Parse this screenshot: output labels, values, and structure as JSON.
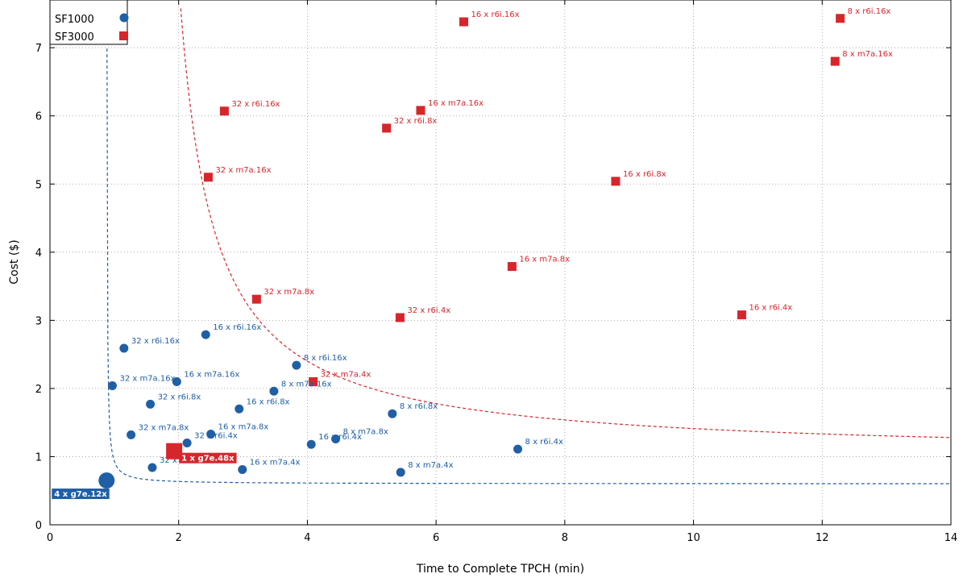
{
  "chart_data": {
    "type": "scatter",
    "xlabel": "Time to Complete TPCH (min)",
    "ylabel": "Cost ($)",
    "xlim": [
      0,
      14
    ],
    "ylim": [
      0,
      7.7
    ],
    "xticks": [
      0,
      2,
      4,
      6,
      8,
      10,
      12,
      14
    ],
    "yticks": [
      0,
      1,
      2,
      3,
      4,
      5,
      6,
      7
    ],
    "grid": true,
    "legend": "top-left",
    "series": [
      {
        "name": "SF1000",
        "marker": "circle",
        "color": "#1f5fa6",
        "points": [
          {
            "x": 1.15,
            "y": 2.59,
            "label": "32 x r6i.16x"
          },
          {
            "x": 2.42,
            "y": 2.79,
            "label": "16 x r6i.16x"
          },
          {
            "x": 3.83,
            "y": 2.34,
            "label": "8 x r6i.16x"
          },
          {
            "x": 0.97,
            "y": 2.04,
            "label": "32 x m7a.16x"
          },
          {
            "x": 1.97,
            "y": 2.1,
            "label": "16 x m7a.16x"
          },
          {
            "x": 3.48,
            "y": 1.96,
            "label": "8 x m7a.16x"
          },
          {
            "x": 1.56,
            "y": 1.77,
            "label": "32 x r6i.8x"
          },
          {
            "x": 2.94,
            "y": 1.7,
            "label": "16 x r6i.8x"
          },
          {
            "x": 5.32,
            "y": 1.63,
            "label": "8 x r6i.8x"
          },
          {
            "x": 1.26,
            "y": 1.32,
            "label": "32 x m7a.8x"
          },
          {
            "x": 2.5,
            "y": 1.33,
            "label": "16 x m7a.8x"
          },
          {
            "x": 2.13,
            "y": 1.2,
            "label": "32 x r6i.4x"
          },
          {
            "x": 4.06,
            "y": 1.18,
            "label": "16 x r6i.4x"
          },
          {
            "x": 4.44,
            "y": 1.26,
            "label": "8 x m7a.8x"
          },
          {
            "x": 7.27,
            "y": 1.11,
            "label": "8 x r6i.4x"
          },
          {
            "x": 1.59,
            "y": 0.84,
            "label": "32 x m7a.4x"
          },
          {
            "x": 2.99,
            "y": 0.81,
            "label": "16 x m7a.4x"
          },
          {
            "x": 5.45,
            "y": 0.77,
            "label": "8 x m7a.4x"
          }
        ],
        "highlight": {
          "x": 0.88,
          "y": 0.65,
          "label": "4 x g7e.12x"
        }
      },
      {
        "name": "SF3000",
        "marker": "square",
        "color": "#d7262b",
        "points": [
          {
            "x": 6.43,
            "y": 7.38,
            "label": "16 x r6i.16x"
          },
          {
            "x": 12.28,
            "y": 7.43,
            "label": "8 x r6i.16x"
          },
          {
            "x": 12.2,
            "y": 6.8,
            "label": "8 x m7a.16x"
          },
          {
            "x": 2.71,
            "y": 6.07,
            "label": "32 x r6i.16x"
          },
          {
            "x": 5.76,
            "y": 6.08,
            "label": "16 x m7a.16x"
          },
          {
            "x": 5.23,
            "y": 5.82,
            "label": "32 x r6i.8x"
          },
          {
            "x": 2.46,
            "y": 5.1,
            "label": "32 x m7a.16x"
          },
          {
            "x": 8.79,
            "y": 5.04,
            "label": "16 x r6i.8x"
          },
          {
            "x": 7.18,
            "y": 3.79,
            "label": "16 x m7a.8x"
          },
          {
            "x": 3.21,
            "y": 3.31,
            "label": "32 x m7a.8x"
          },
          {
            "x": 5.44,
            "y": 3.04,
            "label": "32 x r6i.4x"
          },
          {
            "x": 10.75,
            "y": 3.08,
            "label": "16 x r6i.4x"
          },
          {
            "x": 4.09,
            "y": 2.1,
            "label": "32 x m7a.4x"
          }
        ],
        "highlight": {
          "x": 1.93,
          "y": 1.08,
          "label": "1 x g7e.48x"
        }
      }
    ],
    "frontiers": [
      {
        "series": "SF1000",
        "color": "#1f5fa6",
        "a": 0.6,
        "b": 0.04,
        "x0": 0.88
      },
      {
        "series": "SF3000",
        "color": "#d7262b",
        "a": 1.0,
        "b": 3.5,
        "x0": 1.5
      }
    ]
  }
}
